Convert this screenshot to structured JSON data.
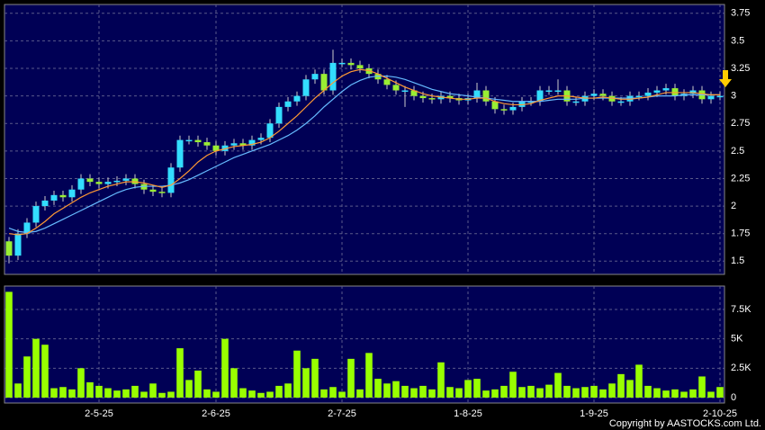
{
  "chart_data": [
    {
      "type": "candlestick",
      "open": [
        1.68,
        1.55,
        1.75,
        1.85,
        2.0,
        2.05,
        2.1,
        2.08,
        2.15,
        2.25,
        2.22,
        2.2,
        2.22,
        2.23,
        2.25,
        2.2,
        2.15,
        2.13,
        2.12,
        2.35,
        2.6,
        2.6,
        2.58,
        2.55,
        2.5,
        2.55,
        2.57,
        2.55,
        2.6,
        2.62,
        2.75,
        2.9,
        2.95,
        3.0,
        3.15,
        3.2,
        3.05,
        3.3,
        3.3,
        3.28,
        3.25,
        3.2,
        3.15,
        3.1,
        3.05,
        3.05,
        3.0,
        2.98,
        2.97,
        3.0,
        2.98,
        2.96,
        2.98,
        3.05,
        2.95,
        2.88,
        2.87,
        2.9,
        2.95,
        2.95,
        3.05,
        3.05,
        3.05,
        2.95,
        2.95,
        3.0,
        3.02,
        3.0,
        2.95,
        2.95,
        3.0,
        3.0,
        3.03,
        3.05,
        3.07,
        3.0,
        3.02,
        3.05,
        2.97,
        3.0
      ],
      "high": [
        1.72,
        1.79,
        1.89,
        2.04,
        2.09,
        2.14,
        2.14,
        2.19,
        2.29,
        2.29,
        2.26,
        2.26,
        2.27,
        2.29,
        2.29,
        2.24,
        2.19,
        2.17,
        2.39,
        2.64,
        2.64,
        2.64,
        2.62,
        2.59,
        2.59,
        2.61,
        2.61,
        2.64,
        2.66,
        2.79,
        2.94,
        2.99,
        3.04,
        3.19,
        3.24,
        3.24,
        3.42,
        3.34,
        3.34,
        3.32,
        3.29,
        3.24,
        3.19,
        3.14,
        3.09,
        3.09,
        3.04,
        3.02,
        3.04,
        3.04,
        3.02,
        3.02,
        3.12,
        3.09,
        2.99,
        2.92,
        2.94,
        2.99,
        2.99,
        3.09,
        3.09,
        3.15,
        3.09,
        2.99,
        3.04,
        3.06,
        3.06,
        3.04,
        2.99,
        3.04,
        3.04,
        3.07,
        3.09,
        3.11,
        3.11,
        3.06,
        3.09,
        3.09,
        3.04,
        3.04
      ],
      "low": [
        1.48,
        1.51,
        1.71,
        1.81,
        1.96,
        2.01,
        2.04,
        2.04,
        2.11,
        2.18,
        2.16,
        2.16,
        2.18,
        2.19,
        2.16,
        2.11,
        2.09,
        2.08,
        2.08,
        2.31,
        2.56,
        2.54,
        2.51,
        2.46,
        2.46,
        2.51,
        2.51,
        2.51,
        2.56,
        2.58,
        2.71,
        2.86,
        2.91,
        2.96,
        3.11,
        3.01,
        3.01,
        3.26,
        3.24,
        3.21,
        3.16,
        3.11,
        3.06,
        3.01,
        2.9,
        2.96,
        2.94,
        2.93,
        2.93,
        2.94,
        2.92,
        2.92,
        2.94,
        2.91,
        2.84,
        2.83,
        2.83,
        2.86,
        2.91,
        2.91,
        3.01,
        3.01,
        2.91,
        2.91,
        2.91,
        2.96,
        2.96,
        2.91,
        2.91,
        2.91,
        2.96,
        2.96,
        2.99,
        3.01,
        2.96,
        2.96,
        2.98,
        2.93,
        2.93,
        2.96
      ],
      "close": [
        1.55,
        1.75,
        1.85,
        2.0,
        2.05,
        2.1,
        2.08,
        2.15,
        2.25,
        2.22,
        2.2,
        2.22,
        2.23,
        2.25,
        2.2,
        2.15,
        2.13,
        2.12,
        2.35,
        2.6,
        2.6,
        2.58,
        2.55,
        2.5,
        2.55,
        2.57,
        2.55,
        2.6,
        2.62,
        2.75,
        2.9,
        2.95,
        3.0,
        3.15,
        3.2,
        3.05,
        3.3,
        3.3,
        3.28,
        3.25,
        3.2,
        3.15,
        3.1,
        3.05,
        3.05,
        3.0,
        2.98,
        2.97,
        3.0,
        2.98,
        2.96,
        2.98,
        3.05,
        2.95,
        2.88,
        2.87,
        2.9,
        2.95,
        2.95,
        3.05,
        3.05,
        3.05,
        2.95,
        2.95,
        3.0,
        3.02,
        3.0,
        2.95,
        2.95,
        3.0,
        3.0,
        3.03,
        3.05,
        3.07,
        3.0,
        3.02,
        3.05,
        2.97,
        3.0,
        3.0
      ],
      "ma_short": [
        1.75,
        1.74,
        1.75,
        1.8,
        1.86,
        1.93,
        1.98,
        2.03,
        2.08,
        2.12,
        2.15,
        2.18,
        2.2,
        2.22,
        2.22,
        2.21,
        2.19,
        2.17,
        2.19,
        2.25,
        2.32,
        2.4,
        2.46,
        2.5,
        2.52,
        2.54,
        2.55,
        2.56,
        2.58,
        2.62,
        2.68,
        2.75,
        2.82,
        2.9,
        2.98,
        3.05,
        3.12,
        3.18,
        3.22,
        3.24,
        3.23,
        3.2,
        3.16,
        3.12,
        3.08,
        3.05,
        3.02,
        3.0,
        2.99,
        2.98,
        2.97,
        2.97,
        2.98,
        2.98,
        2.95,
        2.93,
        2.92,
        2.92,
        2.93,
        2.96,
        2.98,
        3.0,
        3.0,
        2.99,
        2.98,
        2.98,
        2.99,
        2.98,
        2.97,
        2.97,
        2.98,
        2.99,
        3.01,
        3.03,
        3.03,
        3.03,
        3.03,
        3.02,
        3.01,
        3.01
      ],
      "ma_long": [
        1.8,
        1.77,
        1.76,
        1.77,
        1.8,
        1.84,
        1.88,
        1.92,
        1.96,
        2.0,
        2.04,
        2.08,
        2.12,
        2.15,
        2.17,
        2.18,
        2.18,
        2.18,
        2.19,
        2.21,
        2.24,
        2.28,
        2.32,
        2.36,
        2.4,
        2.44,
        2.47,
        2.5,
        2.53,
        2.56,
        2.6,
        2.64,
        2.69,
        2.75,
        2.82,
        2.9,
        2.97,
        3.04,
        3.1,
        3.14,
        3.17,
        3.18,
        3.18,
        3.17,
        3.15,
        3.12,
        3.09,
        3.06,
        3.04,
        3.02,
        3.01,
        3.0,
        2.99,
        2.98,
        2.97,
        2.96,
        2.95,
        2.95,
        2.95,
        2.95,
        2.96,
        2.97,
        2.97,
        2.97,
        2.98,
        2.98,
        2.98,
        2.98,
        2.98,
        2.98,
        2.98,
        2.99,
        3.0,
        3.0,
        3.0,
        3.01,
        3.01,
        3.01,
        3.01,
        3.01
      ],
      "up_color": "#33ddff",
      "down_color": "#99ee33",
      "ma_short_color": "#ff9933",
      "ma_long_color": "#66bbff",
      "ylim": [
        1.38,
        3.83
      ],
      "yticks": [
        1.5,
        1.75,
        2,
        2.25,
        2.5,
        2.75,
        3,
        3.25,
        3.5,
        3.75
      ],
      "grid": true
    },
    {
      "type": "bar",
      "categories": [
        null,
        null,
        null,
        null,
        null,
        null,
        null,
        null,
        null,
        null,
        "2-5-25",
        null,
        null,
        null,
        null,
        null,
        null,
        null,
        null,
        null,
        null,
        null,
        null,
        "2-6-25",
        null,
        null,
        null,
        null,
        null,
        null,
        null,
        null,
        null,
        null,
        null,
        null,
        null,
        "2-7-25",
        null,
        null,
        null,
        null,
        null,
        null,
        null,
        null,
        null,
        null,
        null,
        null,
        null,
        "1-8-25",
        null,
        null,
        null,
        null,
        null,
        null,
        null,
        null,
        null,
        null,
        null,
        null,
        null,
        "1-9-25",
        null,
        null,
        null,
        null,
        null,
        null,
        null,
        null,
        null,
        null,
        null,
        null,
        null,
        "2-10-25"
      ],
      "values": [
        9000,
        1200,
        3500,
        5000,
        4500,
        800,
        900,
        700,
        2500,
        1300,
        1000,
        800,
        600,
        700,
        1000,
        500,
        1200,
        400,
        500,
        4200,
        1500,
        2300,
        700,
        500,
        5000,
        2500,
        800,
        600,
        400,
        500,
        1000,
        1200,
        4000,
        2500,
        3300,
        700,
        900,
        500,
        3300,
        700,
        3800,
        1600,
        1200,
        1400,
        1000,
        800,
        1000,
        700,
        3000,
        900,
        800,
        1500,
        1600,
        600,
        700,
        1000,
        2200,
        900,
        1000,
        800,
        1100,
        2100,
        1000,
        800,
        900,
        1000,
        700,
        1200,
        2000,
        1500,
        2800,
        1000,
        800,
        600,
        700,
        500,
        700,
        1800,
        500,
        900
      ],
      "color": "#99ff00",
      "ylim": [
        -460,
        9490
      ],
      "yticks": [
        0,
        {
          "value": 2500,
          "label": "2.5K"
        },
        {
          "value": 5000,
          "label": "5K"
        },
        {
          "value": 7500,
          "label": "7.5K"
        }
      ],
      "grid": true
    }
  ],
  "copyright": "Copyright by AASTOCKS.com Ltd."
}
